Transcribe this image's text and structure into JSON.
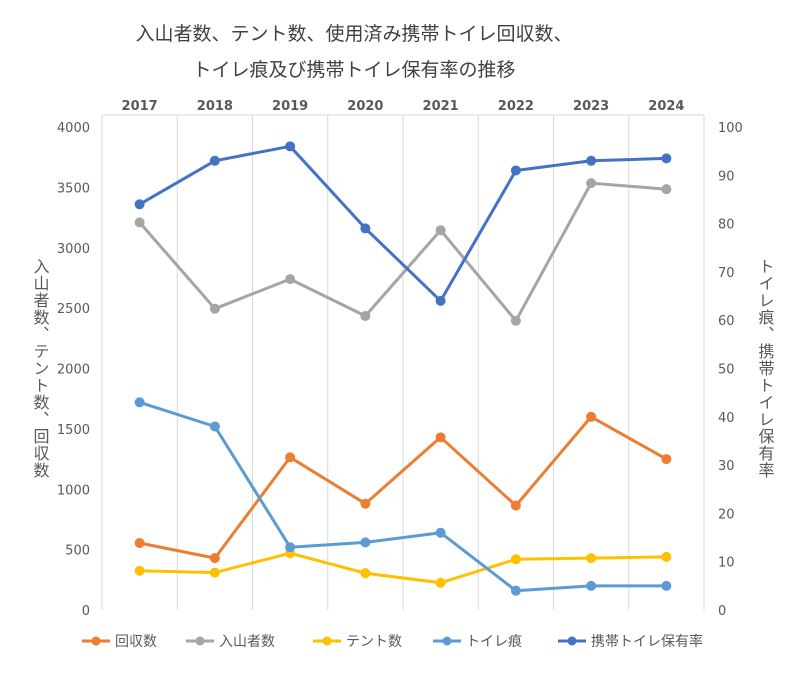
{
  "chart_data": {
    "type": "line",
    "title_lines": [
      "入山者数、テント数、使用済み携帯トイレ回収数、",
      "トイレ痕及び携帯トイレ保有率の推移"
    ],
    "categories": [
      "2017",
      "2018",
      "2019",
      "2020",
      "2021",
      "2022",
      "2023",
      "2024"
    ],
    "x_axis_position": "top",
    "y_left": {
      "label": "入山者数、テント数、回収数",
      "ticks": [
        "0",
        "500",
        "1000",
        "1500",
        "2000",
        "2500",
        "3000",
        "3500",
        "4000"
      ],
      "range": [
        0,
        4000
      ]
    },
    "y_right": {
      "label": "トイレ痕、携帯トイレ保有率",
      "ticks": [
        "0",
        "10",
        "20",
        "30",
        "40",
        "50",
        "60",
        "70",
        "80",
        "90",
        "100"
      ],
      "range": [
        0,
        100
      ]
    },
    "grid": "vertical",
    "legend_position": "bottom",
    "series": [
      {
        "name": "回収数",
        "axis": "left",
        "color": "#ED7D31",
        "values": [
          555,
          430,
          1265,
          880,
          1430,
          865,
          1600,
          1250
        ]
      },
      {
        "name": "入山者数",
        "axis": "left",
        "color": "#A5A5A5",
        "values": [
          3210,
          2495,
          2740,
          2435,
          3145,
          2395,
          3535,
          3485
        ]
      },
      {
        "name": "テント数",
        "axis": "left",
        "color": "#FFC000",
        "values": [
          325,
          310,
          470,
          305,
          225,
          420,
          430,
          440
        ]
      },
      {
        "name": "トイレ痕",
        "axis": "right",
        "color": "#5B9BD5",
        "values": [
          43,
          38,
          13,
          14,
          16,
          4,
          5,
          5
        ]
      },
      {
        "name": "携帯トイレ保有率",
        "axis": "right",
        "color": "#4472C4",
        "values": [
          84,
          93,
          96,
          79,
          64,
          91,
          93,
          93.5
        ]
      }
    ]
  }
}
